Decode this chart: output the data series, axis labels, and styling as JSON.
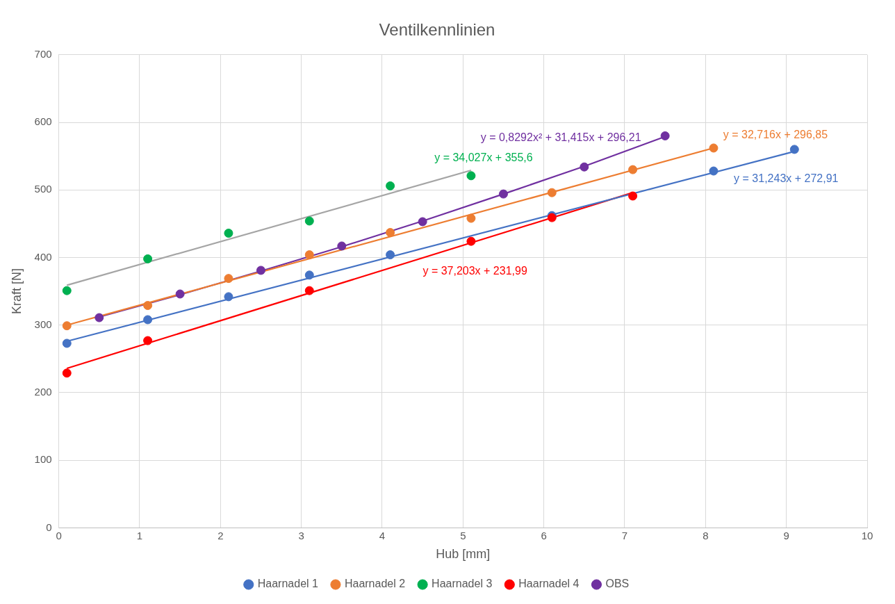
{
  "chart_data": {
    "type": "scatter",
    "title": "Ventilkennlinien",
    "xlabel": "Hub [mm]",
    "ylabel": "Kraft [N]",
    "xlim": [
      0,
      10
    ],
    "xticks": [
      0,
      1,
      2,
      3,
      4,
      5,
      6,
      7,
      8,
      9,
      10
    ],
    "ylim": [
      0,
      700
    ],
    "yticks": [
      0,
      100,
      200,
      300,
      400,
      500,
      600,
      700
    ],
    "grid": true,
    "legend": "bottom",
    "marker": "circle",
    "series": [
      {
        "name": "Haarnadel 1",
        "color": "#4472c4",
        "x": [
          0.1,
          1.1,
          2.1,
          3.1,
          4.1,
          6.1,
          8.1,
          9.1
        ],
        "values": [
          273,
          308,
          342,
          374,
          404,
          462,
          528,
          560
        ]
      },
      {
        "name": "Haarnadel 2",
        "color": "#ed7d31",
        "x": [
          0.1,
          1.1,
          2.1,
          3.1,
          4.1,
          5.1,
          6.1,
          7.1,
          8.1
        ],
        "values": [
          299,
          329,
          369,
          404,
          437,
          458,
          496,
          530,
          562
        ]
      },
      {
        "name": "Haarnadel 3",
        "color": "#00b050",
        "x": [
          0.1,
          1.1,
          2.1,
          3.1,
          4.1,
          5.1
        ],
        "values": [
          351,
          398,
          436,
          454,
          506,
          521
        ]
      },
      {
        "name": "Haarnadel 4",
        "color": "#ff0000",
        "x": [
          0.1,
          1.1,
          3.1,
          5.1,
          6.1,
          7.1
        ],
        "values": [
          229,
          277,
          351,
          424,
          459,
          491
        ]
      },
      {
        "name": "OBS",
        "color": "#7030a0",
        "x": [
          0.5,
          1.5,
          2.5,
          3.5,
          4.5,
          5.5,
          6.5,
          7.5
        ],
        "values": [
          311,
          346,
          381,
          417,
          453,
          494,
          534,
          580
        ]
      },
      {
        "type": "line",
        "marker": "none",
        "color": "#4472c4",
        "x": [
          0.1,
          9.1
        ],
        "values": [
          276,
          557
        ]
      },
      {
        "type": "line",
        "marker": "none",
        "color": "#ed7d31",
        "x": [
          0.1,
          8.1
        ],
        "values": [
          300,
          562
        ]
      },
      {
        "type": "line",
        "marker": "none",
        "color": "#a5a5a5",
        "x": [
          0.1,
          5.1
        ],
        "values": [
          359,
          529
        ]
      },
      {
        "type": "line",
        "marker": "none",
        "color": "#ff0000",
        "x": [
          0.1,
          7.1
        ],
        "values": [
          236,
          496
        ]
      },
      {
        "type": "line",
        "marker": "none",
        "color": "#7030a0",
        "x": [
          0.5,
          1.5,
          2.5,
          3.5,
          4.5,
          5.5,
          6.5,
          7.5
        ],
        "values": [
          312,
          345,
          380,
          416,
          454,
          494,
          535,
          579
        ]
      }
    ],
    "annotations": [
      "y = 31,243x + 272,91",
      "y = 32,716x + 296,85",
      "y = 34,027x + 355,6",
      "y = 37,203x + 231,99",
      "y = 0,8292x² + 31,415x + 296,21"
    ]
  }
}
